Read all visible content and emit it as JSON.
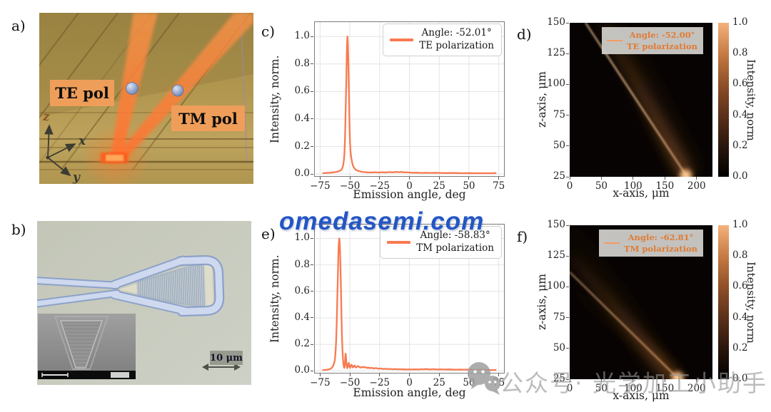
{
  "watermarks": {
    "center": "omedasemi.com",
    "bottom": "公众号· 光学加工小助手"
  },
  "panels": {
    "a": {
      "label": "a)",
      "te_label": "TE pol",
      "tm_label": "TM pol",
      "axis_z": "z",
      "axis_x": "x",
      "axis_y": "y"
    },
    "b": {
      "label": "b)",
      "scalebar_label": "10 μm"
    },
    "c": {
      "label": "c)"
    },
    "d": {
      "label": "d)"
    },
    "e": {
      "label": "e)"
    },
    "f": {
      "label": "f)"
    }
  },
  "chart_data": [
    {
      "panel": "c",
      "type": "line",
      "xlabel": "Emission angle, deg",
      "ylabel": "Intensity, norm.",
      "xlim": [
        -80,
        80
      ],
      "ylim": [
        -0.02,
        1.11
      ],
      "xticks": [
        -75,
        -50,
        -25,
        0,
        25,
        50,
        75
      ],
      "yticks": [
        0,
        0.2,
        0.4,
        0.6,
        0.8,
        1
      ],
      "grid": true,
      "legend_position": "upper right",
      "legend": {
        "line1": "Angle: -52.01°",
        "line2": "TE polarization"
      },
      "line_color": "#f87a50",
      "peak_angle_deg": -52.01,
      "points": [
        [
          -73,
          0.006
        ],
        [
          -70,
          0.008
        ],
        [
          -67,
          0.009
        ],
        [
          -64,
          0.012
        ],
        [
          -62,
          0.014
        ],
        [
          -60,
          0.018
        ],
        [
          -58,
          0.025
        ],
        [
          -57,
          0.032
        ],
        [
          -56,
          0.05
        ],
        [
          -55.5,
          0.07
        ],
        [
          -55,
          0.1
        ],
        [
          -54.5,
          0.16
        ],
        [
          -54,
          0.28
        ],
        [
          -53.5,
          0.47
        ],
        [
          -53,
          0.68
        ],
        [
          -52.6,
          0.86
        ],
        [
          -52.3,
          0.95
        ],
        [
          -52,
          1.0
        ],
        [
          -51.7,
          0.96
        ],
        [
          -51.4,
          0.87
        ],
        [
          -51,
          0.7
        ],
        [
          -50.6,
          0.5
        ],
        [
          -50.2,
          0.33
        ],
        [
          -49.8,
          0.22
        ],
        [
          -49.4,
          0.16
        ],
        [
          -49,
          0.13
        ],
        [
          -48.4,
          0.1
        ],
        [
          -48,
          0.08
        ],
        [
          -47.4,
          0.062
        ],
        [
          -46.8,
          0.05
        ],
        [
          -46,
          0.04
        ],
        [
          -45,
          0.031
        ],
        [
          -44,
          0.026
        ],
        [
          -42,
          0.02
        ],
        [
          -40,
          0.016
        ],
        [
          -38,
          0.014
        ],
        [
          -35,
          0.012
        ],
        [
          -32,
          0.011
        ],
        [
          -29,
          0.013
        ],
        [
          -26,
          0.011
        ],
        [
          -23,
          0.013
        ],
        [
          -20,
          0.011
        ],
        [
          -17,
          0.014
        ],
        [
          -14,
          0.012
        ],
        [
          -11,
          0.016
        ],
        [
          -9,
          0.013
        ],
        [
          -7,
          0.015
        ],
        [
          -5,
          0.012
        ],
        [
          -3,
          0.013
        ],
        [
          0,
          0.011
        ],
        [
          3,
          0.009
        ],
        [
          6,
          0.01
        ],
        [
          10,
          0.008
        ],
        [
          14,
          0.009
        ],
        [
          18,
          0.008
        ],
        [
          22,
          0.009
        ],
        [
          26,
          0.008
        ],
        [
          30,
          0.007
        ],
        [
          35,
          0.008
        ],
        [
          40,
          0.007
        ],
        [
          45,
          0.006
        ],
        [
          50,
          0.007
        ],
        [
          55,
          0.006
        ],
        [
          60,
          0.006
        ],
        [
          65,
          0.006
        ],
        [
          69,
          0.006
        ],
        [
          73,
          0.007
        ]
      ]
    },
    {
      "panel": "d",
      "type": "heatmap",
      "xlabel": "x-axis, μm",
      "ylabel": "z-axis, μm",
      "xlim": [
        0,
        225
      ],
      "ylim": [
        25,
        150
      ],
      "xticks": [
        0,
        50,
        100,
        150,
        200
      ],
      "yticks": [
        25,
        50,
        75,
        100,
        125,
        150
      ],
      "beam_angle_deg": -52.0,
      "legend": {
        "line1": "Angle: -52.00°",
        "line2": "TE polarization"
      },
      "legend_line_color": "#f59a62",
      "legend_text_color": "#e07b35",
      "background": "#060302",
      "colorbar": {
        "label": "Intensity, norm",
        "ticks": [
          0,
          0.2,
          0.4,
          0.6,
          0.8,
          1
        ],
        "colors": [
          "#000000",
          "#2a160c",
          "#5b311a",
          "#8f4f28",
          "#c57c44",
          "#f4b27c"
        ]
      },
      "beams": [
        {
          "x1": 185,
          "z1": 25,
          "x2": 25,
          "z2": 150,
          "width": 2.4,
          "blur": 1.2,
          "color": "#ffd2a0",
          "op_near": 0.95,
          "op_far": 0.7
        },
        {
          "x1": 185,
          "z1": 25,
          "x2": 52,
          "z2": 150,
          "width": 15,
          "blur": 8,
          "color": "#b06a32",
          "op_near": 0.55,
          "op_far": 0.15
        },
        {
          "x1": 187,
          "z1": 27,
          "x2": 72,
          "z2": 150,
          "width": 26,
          "blur": 13,
          "color": "#8a5222",
          "op_near": 0.28,
          "op_far": 0.05
        }
      ],
      "hotspot": {
        "x": 183,
        "z": 26,
        "r": 9,
        "color": "#ffb878",
        "core_color": "#ffe2bc"
      }
    },
    {
      "panel": "e",
      "type": "line",
      "xlabel": "Emission angle, deg",
      "ylabel": "Intensity, norm.",
      "xlim": [
        -80,
        80
      ],
      "ylim": [
        -0.02,
        1.11
      ],
      "xticks": [
        -75,
        -50,
        -25,
        0,
        25,
        50,
        75
      ],
      "yticks": [
        0,
        0.2,
        0.4,
        0.6,
        0.8,
        1
      ],
      "grid": true,
      "legend_position": "upper right",
      "legend": {
        "line1": "Angle: -58.83°",
        "line2": "TM polarization"
      },
      "line_color": "#f87a50",
      "peak_angle_deg": -58.83,
      "points": [
        [
          -73,
          0.006
        ],
        [
          -71,
          0.007
        ],
        [
          -69,
          0.009
        ],
        [
          -67,
          0.013
        ],
        [
          -66,
          0.017
        ],
        [
          -65,
          0.024
        ],
        [
          -64,
          0.038
        ],
        [
          -63,
          0.065
        ],
        [
          -62.5,
          0.09
        ],
        [
          -62,
          0.14
        ],
        [
          -61.5,
          0.23
        ],
        [
          -61,
          0.37
        ],
        [
          -60.5,
          0.55
        ],
        [
          -60,
          0.74
        ],
        [
          -59.6,
          0.89
        ],
        [
          -59.2,
          0.97
        ],
        [
          -58.9,
          1.0
        ],
        [
          -58.6,
          0.98
        ],
        [
          -58.2,
          0.9
        ],
        [
          -57.8,
          0.77
        ],
        [
          -57.4,
          0.59
        ],
        [
          -57,
          0.41
        ],
        [
          -56.6,
          0.26
        ],
        [
          -56.2,
          0.16
        ],
        [
          -55.8,
          0.09
        ],
        [
          -55.4,
          0.05
        ],
        [
          -55,
          0.028
        ],
        [
          -54.6,
          0.022
        ],
        [
          -54.2,
          0.05
        ],
        [
          -53.9,
          0.1
        ],
        [
          -53.6,
          0.13
        ],
        [
          -53.3,
          0.11
        ],
        [
          -53,
          0.07
        ],
        [
          -52.6,
          0.035
        ],
        [
          -52.2,
          0.02
        ],
        [
          -51.8,
          0.03
        ],
        [
          -51.4,
          0.05
        ],
        [
          -51,
          0.06
        ],
        [
          -50.6,
          0.048
        ],
        [
          -50.2,
          0.03
        ],
        [
          -49.8,
          0.022
        ],
        [
          -49.4,
          0.03
        ],
        [
          -49,
          0.042
        ],
        [
          -48.5,
          0.046
        ],
        [
          -48,
          0.036
        ],
        [
          -47.5,
          0.026
        ],
        [
          -47,
          0.03
        ],
        [
          -46.5,
          0.038
        ],
        [
          -46,
          0.04
        ],
        [
          -45.5,
          0.032
        ],
        [
          -45,
          0.025
        ],
        [
          -44,
          0.032
        ],
        [
          -43,
          0.036
        ],
        [
          -42,
          0.028
        ],
        [
          -41,
          0.024
        ],
        [
          -40,
          0.03
        ],
        [
          -39,
          0.026
        ],
        [
          -38,
          0.03
        ],
        [
          -37,
          0.024
        ],
        [
          -36,
          0.027
        ],
        [
          -35,
          0.021
        ],
        [
          -34,
          0.025
        ],
        [
          -33,
          0.02
        ],
        [
          -32,
          0.023
        ],
        [
          -30,
          0.018
        ],
        [
          -28,
          0.021
        ],
        [
          -26,
          0.016
        ],
        [
          -24,
          0.018
        ],
        [
          -22,
          0.014
        ],
        [
          -20,
          0.016
        ],
        [
          -18,
          0.013
        ],
        [
          -16,
          0.015
        ],
        [
          -14,
          0.012
        ],
        [
          -12,
          0.014
        ],
        [
          -10,
          0.012
        ],
        [
          -8,
          0.013
        ],
        [
          -6,
          0.011
        ],
        [
          -4,
          0.012
        ],
        [
          -2,
          0.01
        ],
        [
          0,
          0.012
        ],
        [
          2,
          0.01
        ],
        [
          4,
          0.011
        ],
        [
          6,
          0.012
        ],
        [
          8,
          0.01
        ],
        [
          10,
          0.013
        ],
        [
          12,
          0.011
        ],
        [
          14,
          0.014
        ],
        [
          16,
          0.012
        ],
        [
          18,
          0.011
        ],
        [
          20,
          0.013
        ],
        [
          23,
          0.01
        ],
        [
          26,
          0.012
        ],
        [
          30,
          0.01
        ],
        [
          34,
          0.011
        ],
        [
          38,
          0.009
        ],
        [
          42,
          0.01
        ],
        [
          46,
          0.009
        ],
        [
          50,
          0.01
        ],
        [
          54,
          0.008
        ],
        [
          58,
          0.009
        ],
        [
          62,
          0.008
        ],
        [
          66,
          0.007
        ],
        [
          70,
          0.007
        ],
        [
          73,
          0.007
        ]
      ]
    },
    {
      "panel": "f",
      "type": "heatmap",
      "xlabel": "x-axis, μm",
      "ylabel": "z-axis, μm",
      "xlim": [
        0,
        225
      ],
      "ylim": [
        25,
        150
      ],
      "xticks": [
        0,
        50,
        100,
        150,
        200
      ],
      "yticks": [
        25,
        50,
        75,
        100,
        125,
        150
      ],
      "beam_angle_deg": -62.81,
      "legend": {
        "line1": "Angle: -62.81°",
        "line2": "TM polarization"
      },
      "legend_line_color": "#f59a62",
      "legend_text_color": "#e07b35",
      "background": "#060302",
      "colorbar": {
        "label": "Intensity, norm",
        "ticks": [
          0,
          0.2,
          0.4,
          0.6,
          0.8,
          1
        ],
        "colors": [
          "#000000",
          "#2a160c",
          "#5b311a",
          "#8f4f28",
          "#c57c44",
          "#f4b27c"
        ]
      },
      "beams": [
        {
          "x1": 172,
          "z1": 25,
          "x2": 0,
          "z2": 112,
          "width": 2.2,
          "blur": 1.2,
          "color": "#ffc795",
          "op_near": 0.95,
          "op_far": 0.55
        },
        {
          "x1": 165,
          "z1": 25,
          "x2": 0,
          "z2": 125,
          "width": 14,
          "blur": 8,
          "color": "#b06a32",
          "op_near": 0.5,
          "op_far": 0.12
        },
        {
          "x1": 150,
          "z1": 28,
          "x2": 0,
          "z2": 148,
          "width": 22,
          "blur": 13,
          "color": "#8a5222",
          "op_near": 0.22,
          "op_far": 0.05
        },
        {
          "x1": 180,
          "z1": 25,
          "x2": 0,
          "z2": 100,
          "width": 10,
          "blur": 9,
          "color": "#8a5222",
          "op_near": 0.25,
          "op_far": 0.04
        }
      ],
      "hotspot": {
        "x": 170,
        "z": 26,
        "r": 9,
        "color": "#ffb878",
        "core_color": "#ffe2bc"
      }
    }
  ]
}
